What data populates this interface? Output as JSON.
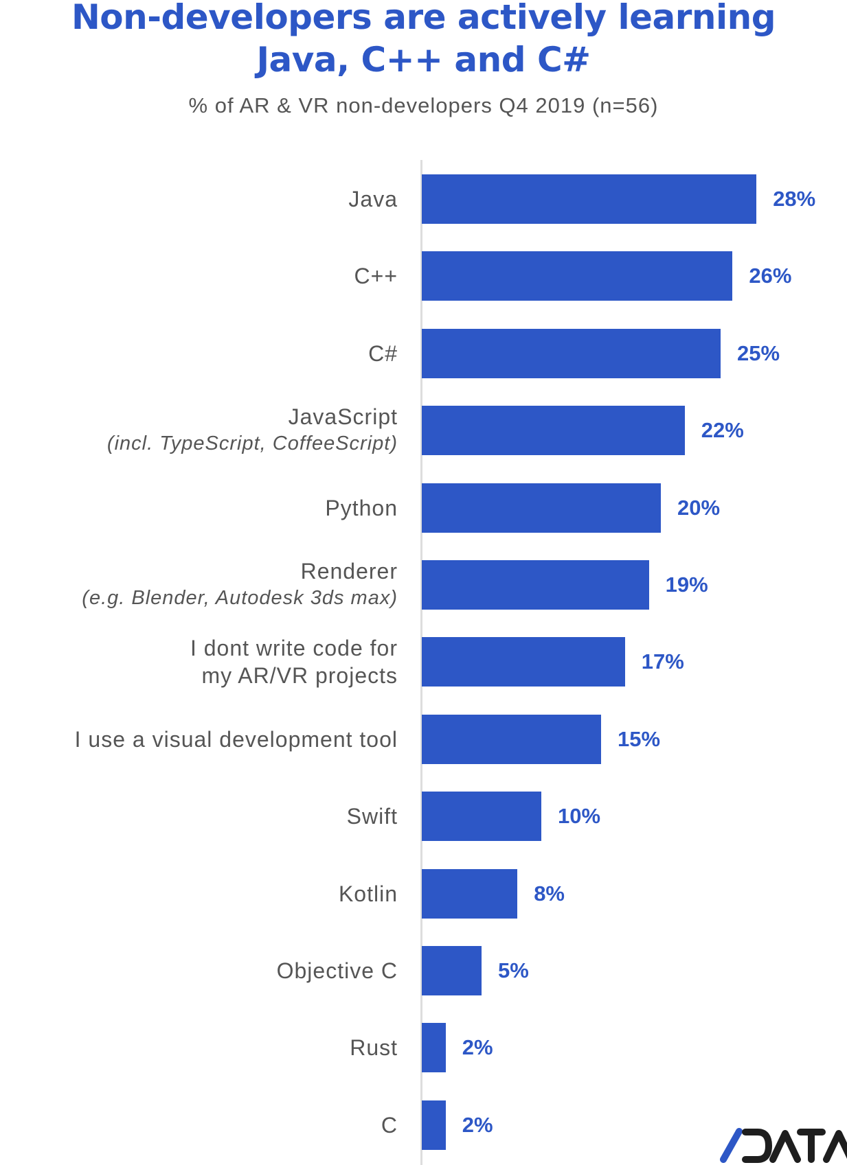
{
  "chart_data": {
    "type": "bar",
    "orientation": "horizontal",
    "title": "Non-developers are actively learning Java, C++ and C#",
    "title_lines": [
      "Non-developers are actively learning",
      "Java, C++ and C#"
    ],
    "subtitle": "% of AR & VR non-developers Q4 2019 (n=56)",
    "categories": [
      {
        "label": "Java",
        "sub": ""
      },
      {
        "label": "C++",
        "sub": ""
      },
      {
        "label": "C#",
        "sub": ""
      },
      {
        "label": "JavaScript",
        "sub": "(incl. TypeScript, CoffeeScript)"
      },
      {
        "label": "Python",
        "sub": ""
      },
      {
        "label": "Renderer",
        "sub": "(e.g. Blender, Autodesk 3ds max)"
      },
      {
        "label": "I dont write code for\nmy AR/VR projects",
        "sub": ""
      },
      {
        "label": "I use a visual development tool",
        "sub": ""
      },
      {
        "label": "Swift",
        "sub": ""
      },
      {
        "label": "Kotlin",
        "sub": ""
      },
      {
        "label": "Objective C",
        "sub": ""
      },
      {
        "label": "Rust",
        "sub": ""
      },
      {
        "label": "C",
        "sub": ""
      }
    ],
    "values": [
      28,
      26,
      25,
      22,
      20,
      19,
      17,
      15,
      10,
      8,
      5,
      2,
      2
    ],
    "value_labels": [
      "28%",
      "26%",
      "25%",
      "22%",
      "20%",
      "19%",
      "17%",
      "15%",
      "10%",
      "8%",
      "5%",
      "2%",
      "2%"
    ],
    "xlim": [
      0,
      28
    ],
    "grid": false,
    "bar_color": "#2d57c6"
  },
  "logo": {
    "text": "/DATA",
    "slash_color": "#2d57c6",
    "text_color": "#1e1e1e"
  }
}
